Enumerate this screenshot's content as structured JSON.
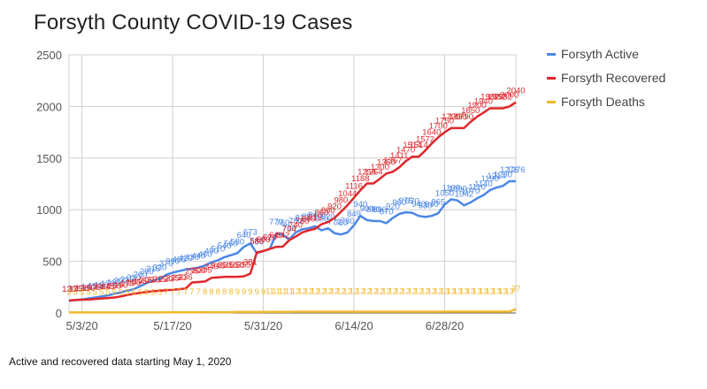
{
  "title": "Forsyth County COVID-19 Cases",
  "footnote": "Active and recovered data starting May 1, 2020",
  "chart_data": {
    "type": "line",
    "title": "Forsyth County COVID-19 Cases",
    "xlabel": "",
    "ylabel": "",
    "x": [
      "5/1",
      "5/2",
      "5/3",
      "5/4",
      "5/5",
      "5/6",
      "5/7",
      "5/8",
      "5/9",
      "5/10",
      "5/11",
      "5/12",
      "5/13",
      "5/14",
      "5/15",
      "5/16",
      "5/17",
      "5/18",
      "5/19",
      "5/20",
      "5/21",
      "5/22",
      "5/23",
      "5/24",
      "5/25",
      "5/26",
      "5/27",
      "5/28",
      "5/29",
      "5/30",
      "5/31",
      "6/1",
      "6/2",
      "6/3",
      "6/4",
      "6/5",
      "6/6",
      "6/7",
      "6/8",
      "6/9",
      "6/10",
      "6/11",
      "6/12",
      "6/13",
      "6/14",
      "6/15",
      "6/16",
      "6/17",
      "6/18",
      "6/19",
      "6/20",
      "6/21",
      "6/22",
      "6/23",
      "6/24",
      "6/25",
      "6/26",
      "6/27",
      "6/28",
      "6/29",
      "6/30",
      "7/1",
      "7/2",
      "7/3",
      "7/4",
      "7/5",
      "7/6",
      "7/7",
      "7/8",
      "7/9"
    ],
    "x_ticks": [
      "5/3/20",
      "5/17/20",
      "5/31/20",
      "6/14/20",
      "6/28/20"
    ],
    "ylim": [
      0,
      2500
    ],
    "y_ticks": [
      0,
      500,
      1000,
      1500,
      2000,
      2500
    ],
    "grid": true,
    "legend_position": "right",
    "series": [
      {
        "name": "Forsyth Active",
        "color": "#4a86e8",
        "values": [
          120,
          125,
          130,
          140,
          150,
          160,
          170,
          185,
          200,
          215,
          230,
          260,
          290,
          315,
          330,
          370,
          390,
          405,
          420,
          430,
          440,
          460,
          490,
          510,
          540,
          560,
          580,
          640,
          673,
          580,
          600,
          620,
          770,
          760,
          710,
          780,
          810,
          820,
          840,
          800,
          820,
          772,
          760,
          780,
          849,
          940,
          900,
          890,
          890,
          870,
          920,
          960,
          975,
          970,
          940,
          930,
          940,
          965,
          1050,
          1100,
          1090,
          1042,
          1070,
          1110,
          1140,
          1190,
          1214,
          1230,
          1276,
          1276
        ]
      },
      {
        "name": "Forsyth Recovered",
        "color": "#e0262a",
        "values": [
          120,
          125,
          128,
          130,
          135,
          140,
          145,
          150,
          160,
          175,
          185,
          195,
          205,
          210,
          215,
          220,
          225,
          230,
          236,
          295,
          300,
          305,
          340,
          345,
          350,
          350,
          350,
          355,
          381,
          586,
          600,
          620,
          640,
          642,
          704,
          740,
          780,
          800,
          815,
          860,
          880,
          920,
          980,
          1044,
          1116,
          1188,
          1254,
          1254,
          1300,
          1350,
          1367,
          1411,
          1470,
          1514,
          1514,
          1572,
          1640,
          1700,
          1750,
          1790,
          1790,
          1790,
          1850,
          1900,
          1940,
          1982,
          1982,
          1982,
          2000,
          2040
        ]
      },
      {
        "name": "Forsyth Deaths",
        "color": "#f1b92c",
        "values": [
          5,
          5,
          5,
          5,
          5,
          5,
          5,
          5,
          5,
          5,
          5,
          5,
          5,
          5,
          5,
          7,
          7,
          7,
          7,
          7,
          7,
          8,
          8,
          8,
          8,
          8,
          9,
          9,
          9,
          9,
          9,
          11,
          11,
          11,
          11,
          12,
          12,
          12,
          12,
          12,
          12,
          12,
          12,
          12,
          12,
          12,
          12,
          12,
          12,
          12,
          12,
          12,
          12,
          12,
          12,
          12,
          12,
          12,
          13,
          13,
          13,
          13,
          13,
          13,
          13,
          13,
          13,
          13,
          13,
          37
        ]
      }
    ]
  }
}
